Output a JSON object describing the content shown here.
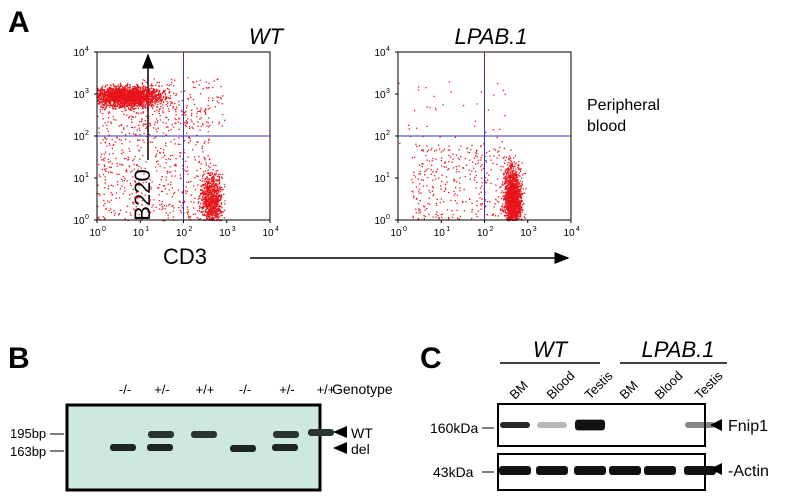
{
  "panel_a": {
    "label": "A",
    "plots": [
      {
        "title": "WT"
      },
      {
        "title": "LPAB.1"
      }
    ],
    "y_axis_label": "B220",
    "x_axis_label": "CD3",
    "tick_base": "10",
    "tick_exponents": [
      "0",
      "1",
      "2",
      "3",
      "4"
    ],
    "annotation": [
      "Peripheral",
      "blood"
    ]
  },
  "panel_b": {
    "label": "B",
    "genotype_header": "Genotype",
    "lanes": [
      "-/-",
      "+/-",
      "+/+",
      "-/-",
      "+/-",
      "+/+"
    ],
    "markers": [
      "195bp",
      "163bp"
    ],
    "bands": [
      "WT",
      "del"
    ]
  },
  "panel_c": {
    "label": "C",
    "groups": [
      {
        "name": "WT",
        "lanes": [
          "BM",
          "Blood",
          "Testis"
        ]
      },
      {
        "name": "LPAB.1",
        "lanes": [
          "BM",
          "Blood",
          "Testis"
        ]
      }
    ],
    "markers": [
      "160kDa",
      "43kDa"
    ],
    "proteins": [
      "Fnip1",
      "-Actin"
    ]
  }
}
